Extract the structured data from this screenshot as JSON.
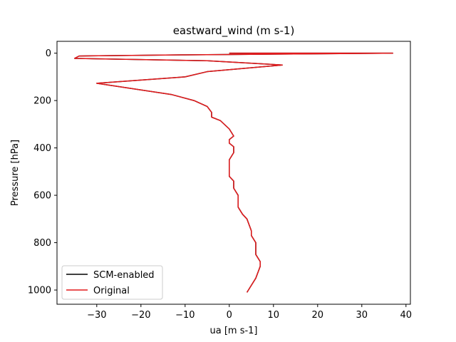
{
  "chart_data": {
    "type": "line",
    "title": "eastward_wind (m s-1)",
    "xlabel": "ua [m s-1]",
    "ylabel": "Pressure [hPa]",
    "xlim": [
      -39,
      41
    ],
    "ylim": [
      1060,
      -50
    ],
    "y_inverted": true,
    "xticks": [
      -30,
      -20,
      -10,
      0,
      10,
      20,
      30,
      40
    ],
    "yticks": [
      0,
      200,
      400,
      600,
      800,
      1000
    ],
    "grid": false,
    "legend": {
      "placement": "lower-left"
    },
    "series": [
      {
        "name": "SCM-enabled",
        "color": "#000000",
        "points": [
          [
            0,
            0
          ],
          [
            37,
            0
          ],
          [
            -10,
            7
          ],
          [
            -34,
            12
          ],
          [
            -35,
            22
          ],
          [
            -5,
            32
          ],
          [
            12,
            50
          ],
          [
            -5,
            78
          ],
          [
            -10,
            100
          ],
          [
            -30,
            127
          ],
          [
            -13,
            175
          ],
          [
            -8,
            200
          ],
          [
            -5,
            225
          ],
          [
            -4,
            250
          ],
          [
            -4,
            270
          ],
          [
            -2,
            285
          ],
          [
            0,
            320
          ],
          [
            1,
            350
          ],
          [
            0,
            365
          ],
          [
            0,
            380
          ],
          [
            1,
            395
          ],
          [
            1,
            420
          ],
          [
            0,
            450
          ],
          [
            0,
            480
          ],
          [
            0,
            500
          ],
          [
            0,
            520
          ],
          [
            1,
            540
          ],
          [
            1,
            570
          ],
          [
            2,
            600
          ],
          [
            2,
            650
          ],
          [
            3,
            680
          ],
          [
            4,
            700
          ],
          [
            5,
            750
          ],
          [
            5,
            770
          ],
          [
            6,
            800
          ],
          [
            6,
            830
          ],
          [
            6,
            850
          ],
          [
            7,
            880
          ],
          [
            7,
            900
          ],
          [
            6,
            950
          ],
          [
            5,
            980
          ],
          [
            4,
            1010
          ]
        ]
      },
      {
        "name": "Original",
        "color": "#e41a1c",
        "points": [
          [
            0,
            0
          ],
          [
            37,
            0
          ],
          [
            -10,
            7
          ],
          [
            -34,
            12
          ],
          [
            -35,
            22
          ],
          [
            -5,
            32
          ],
          [
            12,
            50
          ],
          [
            -5,
            78
          ],
          [
            -10,
            100
          ],
          [
            -30,
            127
          ],
          [
            -13,
            175
          ],
          [
            -8,
            200
          ],
          [
            -5,
            225
          ],
          [
            -4,
            250
          ],
          [
            -4,
            270
          ],
          [
            -2,
            285
          ],
          [
            0,
            320
          ],
          [
            1,
            350
          ],
          [
            0,
            365
          ],
          [
            0,
            380
          ],
          [
            1,
            395
          ],
          [
            1,
            420
          ],
          [
            0,
            450
          ],
          [
            0,
            480
          ],
          [
            0,
            500
          ],
          [
            0,
            520
          ],
          [
            1,
            540
          ],
          [
            1,
            570
          ],
          [
            2,
            600
          ],
          [
            2,
            650
          ],
          [
            3,
            680
          ],
          [
            4,
            700
          ],
          [
            5,
            750
          ],
          [
            5,
            770
          ],
          [
            6,
            800
          ],
          [
            6,
            830
          ],
          [
            6,
            850
          ],
          [
            7,
            880
          ],
          [
            7,
            900
          ],
          [
            6,
            950
          ],
          [
            5,
            980
          ],
          [
            4,
            1010
          ]
        ]
      }
    ]
  }
}
